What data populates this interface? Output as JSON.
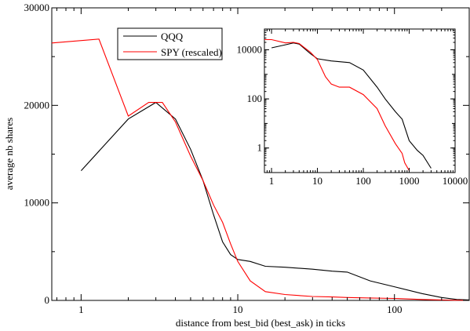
{
  "chart_data": [
    {
      "type": "line",
      "xlabel": "distance from best_bid (best_ask) in ticks",
      "ylabel": "average nb shares",
      "xscale": "log",
      "yscale": "linear",
      "xlim": [
        0.65,
        300
      ],
      "ylim": [
        0,
        30000
      ],
      "x_tick_labels": [
        "1",
        "10",
        "100"
      ],
      "y_tick_labels": [
        "0",
        "10000",
        "20000",
        "30000"
      ],
      "legend": [
        "QQQ",
        "SPY (rescaled)"
      ],
      "legend_placement": "top-center",
      "grid": false,
      "series": [
        {
          "name": "QQQ",
          "color": "#000000",
          "x": [
            1,
            2,
            3,
            4,
            5,
            6,
            7,
            8,
            9,
            10,
            12,
            15,
            20,
            30,
            40,
            50,
            70,
            100,
            150,
            200,
            250,
            300
          ],
          "y": [
            13300,
            18600,
            20300,
            18600,
            15500,
            12300,
            8800,
            6000,
            4700,
            4200,
            4000,
            3500,
            3400,
            3200,
            3000,
            2900,
            2000,
            1400,
            700,
            300,
            100,
            50
          ]
        },
        {
          "name": "SPY (rescaled)",
          "color": "#ff0000",
          "x": [
            0.65,
            1.3,
            2,
            2.7,
            3.3,
            4,
            5,
            6,
            7,
            8,
            9,
            10,
            12,
            15,
            20,
            30,
            40,
            50,
            70,
            100,
            150,
            200,
            300
          ],
          "y": [
            26400,
            26800,
            18900,
            20300,
            20300,
            18300,
            14800,
            12300,
            9800,
            8000,
            5800,
            4000,
            2000,
            900,
            600,
            400,
            350,
            300,
            250,
            200,
            100,
            50,
            0
          ]
        }
      ]
    },
    {
      "type": "line",
      "inset": true,
      "xscale": "log",
      "yscale": "log",
      "xlim": [
        0.7,
        10000
      ],
      "ylim": [
        0.1,
        70000
      ],
      "x_tick_labels": [
        "1",
        "10",
        "100",
        "1000",
        "10000"
      ],
      "y_tick_labels": [
        "1",
        "100",
        "10000"
      ],
      "grid": false,
      "series": [
        {
          "name": "QQQ",
          "color": "#000000",
          "x": [
            1,
            2,
            3,
            4,
            5,
            7,
            10,
            20,
            50,
            100,
            200,
            300,
            500,
            700,
            1000,
            1500,
            2000,
            3000
          ],
          "y": [
            12000,
            16000,
            19000,
            17000,
            12000,
            7000,
            4300,
            3500,
            3000,
            1500,
            300,
            100,
            30,
            15,
            2,
            0.8,
            0.5,
            0.15
          ]
        },
        {
          "name": "SPY (rescaled)",
          "color": "#ff0000",
          "x": [
            0.7,
            1,
            2,
            3,
            4,
            5,
            7,
            10,
            15,
            20,
            30,
            50,
            100,
            200,
            300,
            500,
            700,
            800,
            1000
          ],
          "y": [
            26000,
            26000,
            19000,
            20000,
            18000,
            13000,
            8000,
            4000,
            800,
            400,
            300,
            300,
            150,
            40,
            8,
            1.5,
            0.6,
            0.25,
            0.12
          ]
        }
      ]
    }
  ]
}
